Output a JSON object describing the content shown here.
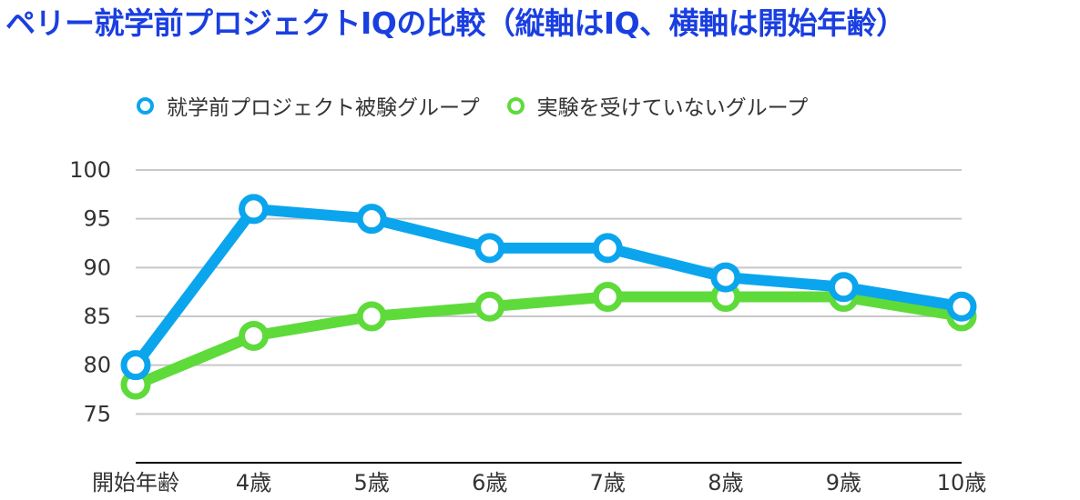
{
  "chart_data": {
    "type": "line",
    "title": "ペリー就学前プロジェクトIQの比較（縦軸はIQ、横軸は開始年齢）",
    "xlabel": "",
    "ylabel": "",
    "categories": [
      "開始年齢",
      "4歳",
      "5歳",
      "6歳",
      "7歳",
      "8歳",
      "9歳",
      "10歳"
    ],
    "series": [
      {
        "name": "就学前プロジェクト被験グループ",
        "color": "#0ba5ee",
        "values": [
          80,
          96,
          95,
          92,
          92,
          89,
          88,
          86
        ]
      },
      {
        "name": "実験を受けていないグループ",
        "color": "#5edb3b",
        "values": [
          78,
          83,
          85,
          86,
          87,
          87,
          87,
          85
        ]
      }
    ],
    "ylim": [
      70,
      100
    ],
    "yticks": [
      "75",
      "80",
      "85",
      "90",
      "95",
      "100"
    ],
    "grid": true,
    "legend_position": "top"
  }
}
